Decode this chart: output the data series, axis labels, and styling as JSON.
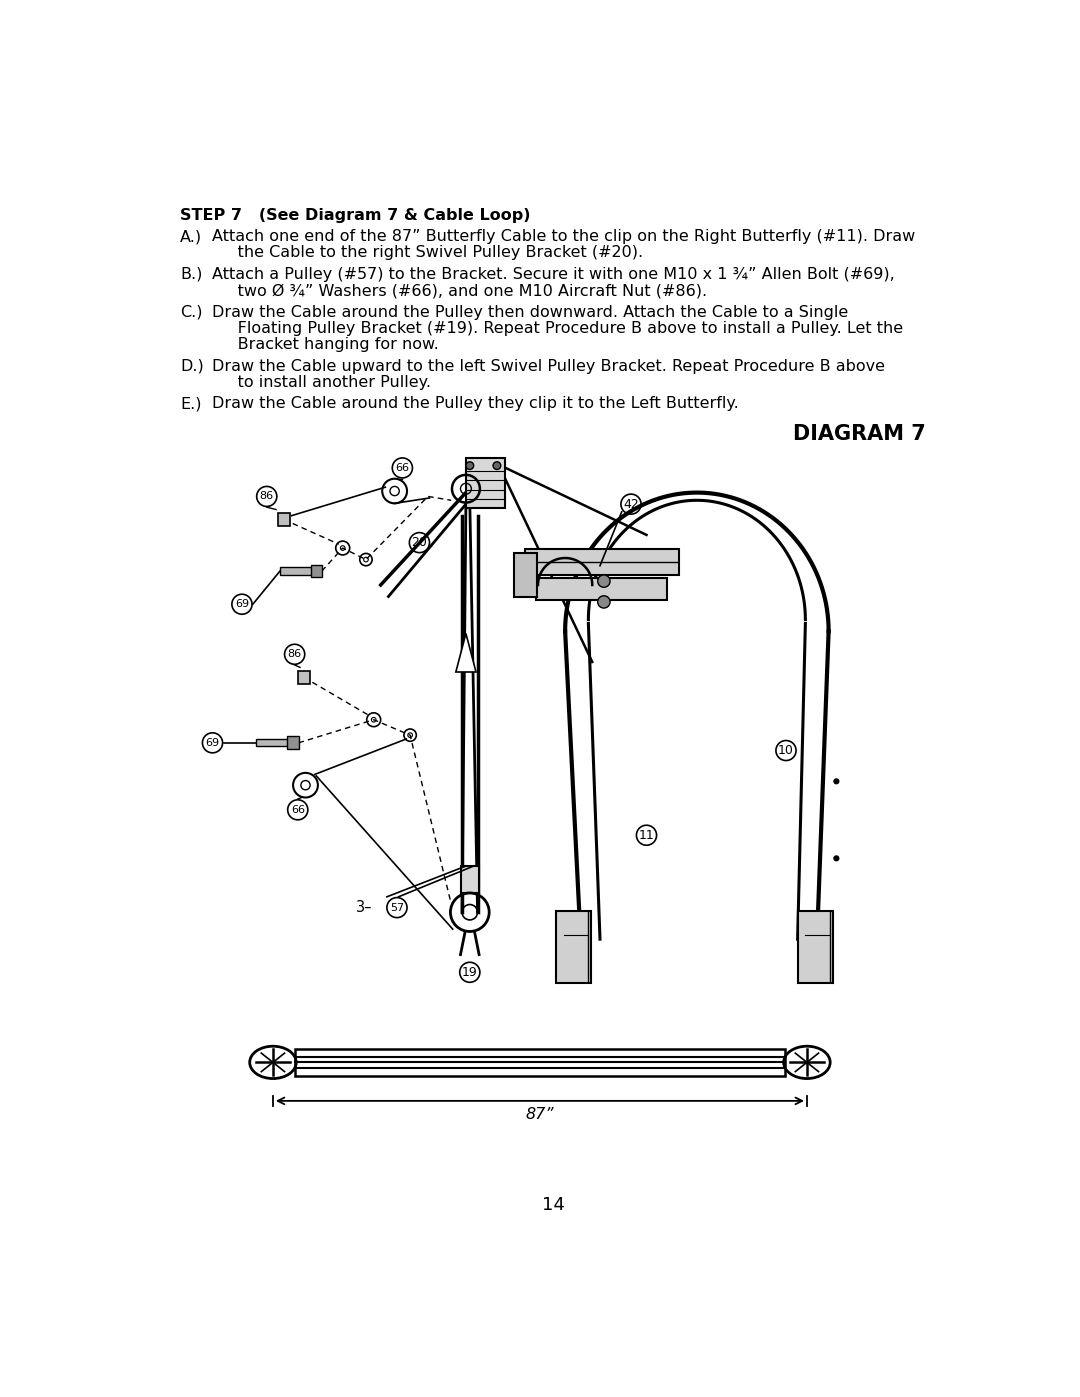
{
  "page_number": "14",
  "background_color": "#ffffff",
  "step_title": "STEP 7   (See Diagram 7 & Cable Loop)",
  "text_color": "#000000",
  "diagram_title": "DIAGRAM 7",
  "instr_A_label": "A.)",
  "instr_A_lines": [
    "Attach one end of the 87” Butterfly Cable to the clip on the Right Butterfly (#11). Draw",
    "     the Cable to the right Swivel Pulley Bracket (#20)."
  ],
  "instr_B_label": "B.)",
  "instr_B_lines": [
    "Attach a Pulley (#57) to the Bracket. Secure it with one M10 x 1 ¾” Allen Bolt (#69),",
    "     two Ø ¾” Washers (#66), and one M10 Aircraft Nut (#86)."
  ],
  "instr_C_label": "C.)",
  "instr_C_lines": [
    "Draw the Cable around the Pulley then downward. Attach the Cable to a Single",
    "     Floating Pulley Bracket (#19). Repeat Procedure B above to install a Pulley. Let the",
    "     Bracket hanging for now."
  ],
  "instr_D_label": "D.)",
  "instr_D_lines": [
    "Draw the Cable upward to the left Swivel Pulley Bracket. Repeat Procedure B above",
    "     to install another Pulley."
  ],
  "instr_E_label": "E.)",
  "instr_E_lines": [
    "Draw the Cable around the Pulley they clip it to the Left Butterfly."
  ]
}
